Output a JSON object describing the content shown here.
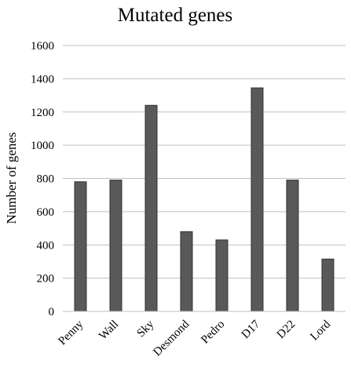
{
  "chart_data": {
    "type": "bar",
    "title": "Mutated genes",
    "xlabel": "",
    "ylabel": "Number of genes",
    "categories": [
      "Penny",
      "Wall",
      "Sky",
      "Desmond",
      "Pedro",
      "D17",
      "D22",
      "Lord"
    ],
    "values": [
      780,
      790,
      1240,
      480,
      430,
      1345,
      790,
      315
    ],
    "ylim": [
      0,
      1600
    ],
    "yticks": [
      "0",
      "200",
      "400",
      "600",
      "800",
      "1000",
      "1200",
      "1400",
      "1600"
    ],
    "grid": true,
    "legend": "none",
    "colors": {
      "bar": "#595959",
      "bar_edge": "#333333",
      "grid": "#bfbfbf",
      "axis": "#000000"
    }
  }
}
